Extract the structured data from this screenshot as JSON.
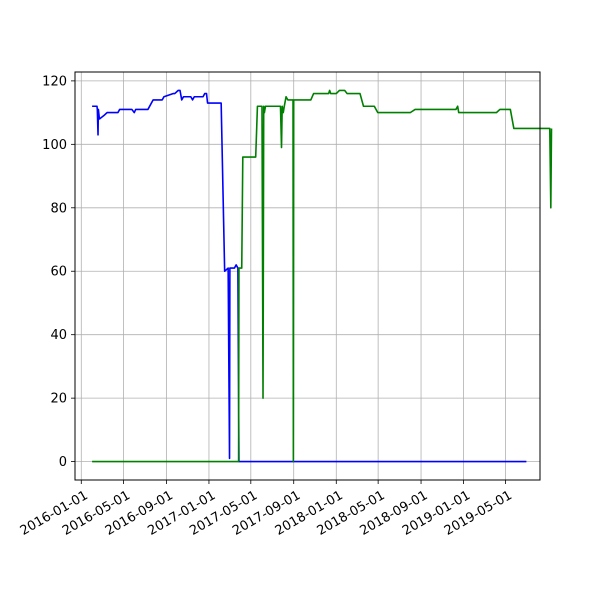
{
  "chart_data": {
    "type": "line",
    "title": "",
    "xlabel": "",
    "ylabel": "",
    "grid": true,
    "xaxis_type": "date",
    "xlim": [
      "2015-12-14",
      "2019-08-08"
    ],
    "ylim": [
      -5.8,
      122.8
    ],
    "x_ticks": [
      "2016-01-01",
      "2016-05-01",
      "2016-09-01",
      "2017-01-01",
      "2017-05-01",
      "2017-09-01",
      "2018-01-01",
      "2018-05-01",
      "2018-09-01",
      "2019-01-01",
      "2019-05-01"
    ],
    "y_ticks": [
      0,
      20,
      40,
      60,
      80,
      100,
      120
    ],
    "series": [
      {
        "color": "#0000ff",
        "points": [
          [
            "2016-02-01",
            112
          ],
          [
            "2016-02-15",
            112
          ],
          [
            "2016-02-16",
            111
          ],
          [
            "2016-02-18",
            103
          ],
          [
            "2016-02-19",
            111
          ],
          [
            "2016-02-22",
            108
          ],
          [
            "2016-03-05",
            109
          ],
          [
            "2016-03-15",
            110
          ],
          [
            "2016-04-15",
            110
          ],
          [
            "2016-04-20",
            111
          ],
          [
            "2016-05-25",
            111
          ],
          [
            "2016-06-01",
            110
          ],
          [
            "2016-06-05",
            111
          ],
          [
            "2016-07-10",
            111
          ],
          [
            "2016-07-25",
            114
          ],
          [
            "2016-08-20",
            114
          ],
          [
            "2016-08-25",
            115
          ],
          [
            "2016-09-20",
            116
          ],
          [
            "2016-09-25",
            116
          ],
          [
            "2016-10-05",
            117
          ],
          [
            "2016-10-10",
            117
          ],
          [
            "2016-10-15",
            114
          ],
          [
            "2016-10-20",
            115
          ],
          [
            "2016-11-10",
            115
          ],
          [
            "2016-11-15",
            114
          ],
          [
            "2016-11-20",
            115
          ],
          [
            "2016-12-15",
            115
          ],
          [
            "2016-12-20",
            116
          ],
          [
            "2016-12-25",
            116
          ],
          [
            "2016-12-28",
            113
          ],
          [
            "2017-02-05",
            113
          ],
          [
            "2017-02-15",
            60
          ],
          [
            "2017-02-25",
            61
          ],
          [
            "2017-03-01",
            1
          ],
          [
            "2017-03-02",
            61
          ],
          [
            "2017-03-15",
            61
          ],
          [
            "2017-03-20",
            62
          ],
          [
            "2017-03-25",
            61
          ],
          [
            "2017-03-28",
            0
          ],
          [
            "2019-06-30",
            0
          ]
        ]
      },
      {
        "color": "#008000",
        "points": [
          [
            "2016-02-01",
            0
          ],
          [
            "2017-03-27",
            0
          ],
          [
            "2017-03-28",
            61
          ],
          [
            "2017-04-05",
            61
          ],
          [
            "2017-04-08",
            96
          ],
          [
            "2017-05-15",
            96
          ],
          [
            "2017-05-20",
            112
          ],
          [
            "2017-06-02",
            112
          ],
          [
            "2017-06-05",
            20
          ],
          [
            "2017-06-07",
            112
          ],
          [
            "2017-06-09",
            110
          ],
          [
            "2017-06-12",
            112
          ],
          [
            "2017-07-25",
            112
          ],
          [
            "2017-07-28",
            99
          ],
          [
            "2017-07-30",
            112
          ],
          [
            "2017-08-02",
            110
          ],
          [
            "2017-08-05",
            112
          ],
          [
            "2017-08-10",
            115
          ],
          [
            "2017-08-15",
            114
          ],
          [
            "2017-08-30",
            114
          ],
          [
            "2017-08-31",
            0
          ],
          [
            "2017-09-01",
            114
          ],
          [
            "2017-10-20",
            114
          ],
          [
            "2017-10-28",
            116
          ],
          [
            "2017-12-10",
            116
          ],
          [
            "2017-12-13",
            117
          ],
          [
            "2017-12-16",
            116
          ],
          [
            "2018-01-01",
            116
          ],
          [
            "2018-01-10",
            117
          ],
          [
            "2018-01-25",
            117
          ],
          [
            "2018-02-01",
            116
          ],
          [
            "2018-03-10",
            116
          ],
          [
            "2018-03-20",
            112
          ],
          [
            "2018-04-20",
            112
          ],
          [
            "2018-04-30",
            110
          ],
          [
            "2018-08-01",
            110
          ],
          [
            "2018-08-15",
            111
          ],
          [
            "2018-12-10",
            111
          ],
          [
            "2018-12-15",
            112
          ],
          [
            "2018-12-18",
            110
          ],
          [
            "2019-04-05",
            110
          ],
          [
            "2019-04-15",
            111
          ],
          [
            "2019-05-15",
            111
          ],
          [
            "2019-05-25",
            105
          ],
          [
            "2019-09-05",
            105
          ],
          [
            "2019-09-08",
            80
          ],
          [
            "2019-09-10",
            105
          ]
        ]
      }
    ]
  }
}
